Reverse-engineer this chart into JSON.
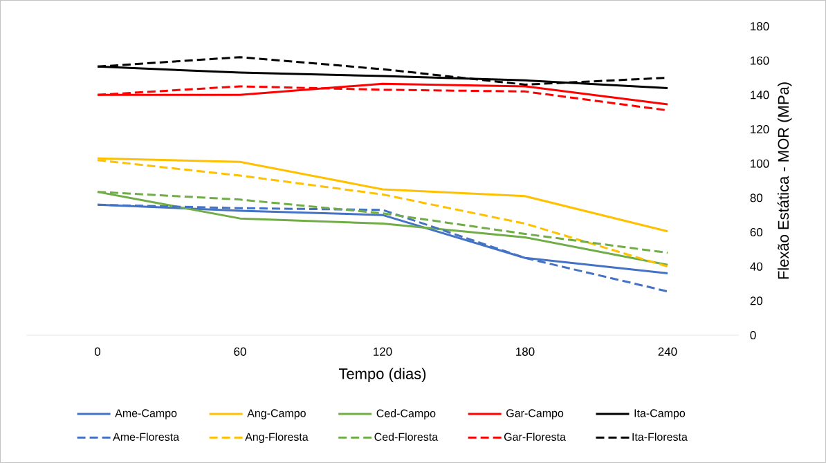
{
  "chart_data": {
    "type": "line",
    "xlabel": "Tempo (dias)",
    "ylabel": "Flexão Estática - MOR (MPa)",
    "categories": [
      "0",
      "60",
      "120",
      "180",
      "240"
    ],
    "ylim": [
      0,
      180
    ],
    "yticks": [
      0,
      20,
      40,
      60,
      80,
      100,
      120,
      140,
      160,
      180
    ],
    "grid": false,
    "legend": "bottom",
    "series": [
      {
        "name": "Ame-Campo",
        "color": "#4472c4",
        "line_style": "solid",
        "values": [
          76,
          72.5,
          70,
          45,
          36
        ]
      },
      {
        "name": "Ang-Campo",
        "color": "#ffc000",
        "line_style": "solid",
        "values": [
          103,
          101,
          85,
          81,
          60.5
        ]
      },
      {
        "name": "Ced-Campo",
        "color": "#70ad47",
        "line_style": "solid",
        "values": [
          83.5,
          68,
          65,
          57,
          41
        ]
      },
      {
        "name": "Gar-Campo",
        "color": "#ff0000",
        "line_style": "solid",
        "values": [
          140,
          140,
          146.5,
          145,
          134.5
        ]
      },
      {
        "name": "Ita-Campo",
        "color": "#000000",
        "line_style": "solid",
        "values": [
          156.5,
          153,
          151,
          148.5,
          144
        ]
      },
      {
        "name": "Ame-Floresta",
        "color": "#4472c4",
        "line_style": "dashed",
        "values": [
          76,
          74,
          73,
          45,
          25.5
        ]
      },
      {
        "name": "Ang-Floresta",
        "color": "#ffc000",
        "line_style": "dashed",
        "values": [
          102,
          93,
          82,
          65,
          40
        ]
      },
      {
        "name": "Ced-Floresta",
        "color": "#70ad47",
        "line_style": "dashed",
        "values": [
          83.5,
          79,
          71,
          59,
          48
        ]
      },
      {
        "name": "Gar-Floresta",
        "color": "#ff0000",
        "line_style": "dashed",
        "values": [
          140,
          145,
          143,
          142,
          131
        ]
      },
      {
        "name": "Ita-Floresta",
        "color": "#000000",
        "line_style": "dashed",
        "values": [
          156.5,
          162,
          155,
          146,
          150
        ]
      }
    ]
  }
}
